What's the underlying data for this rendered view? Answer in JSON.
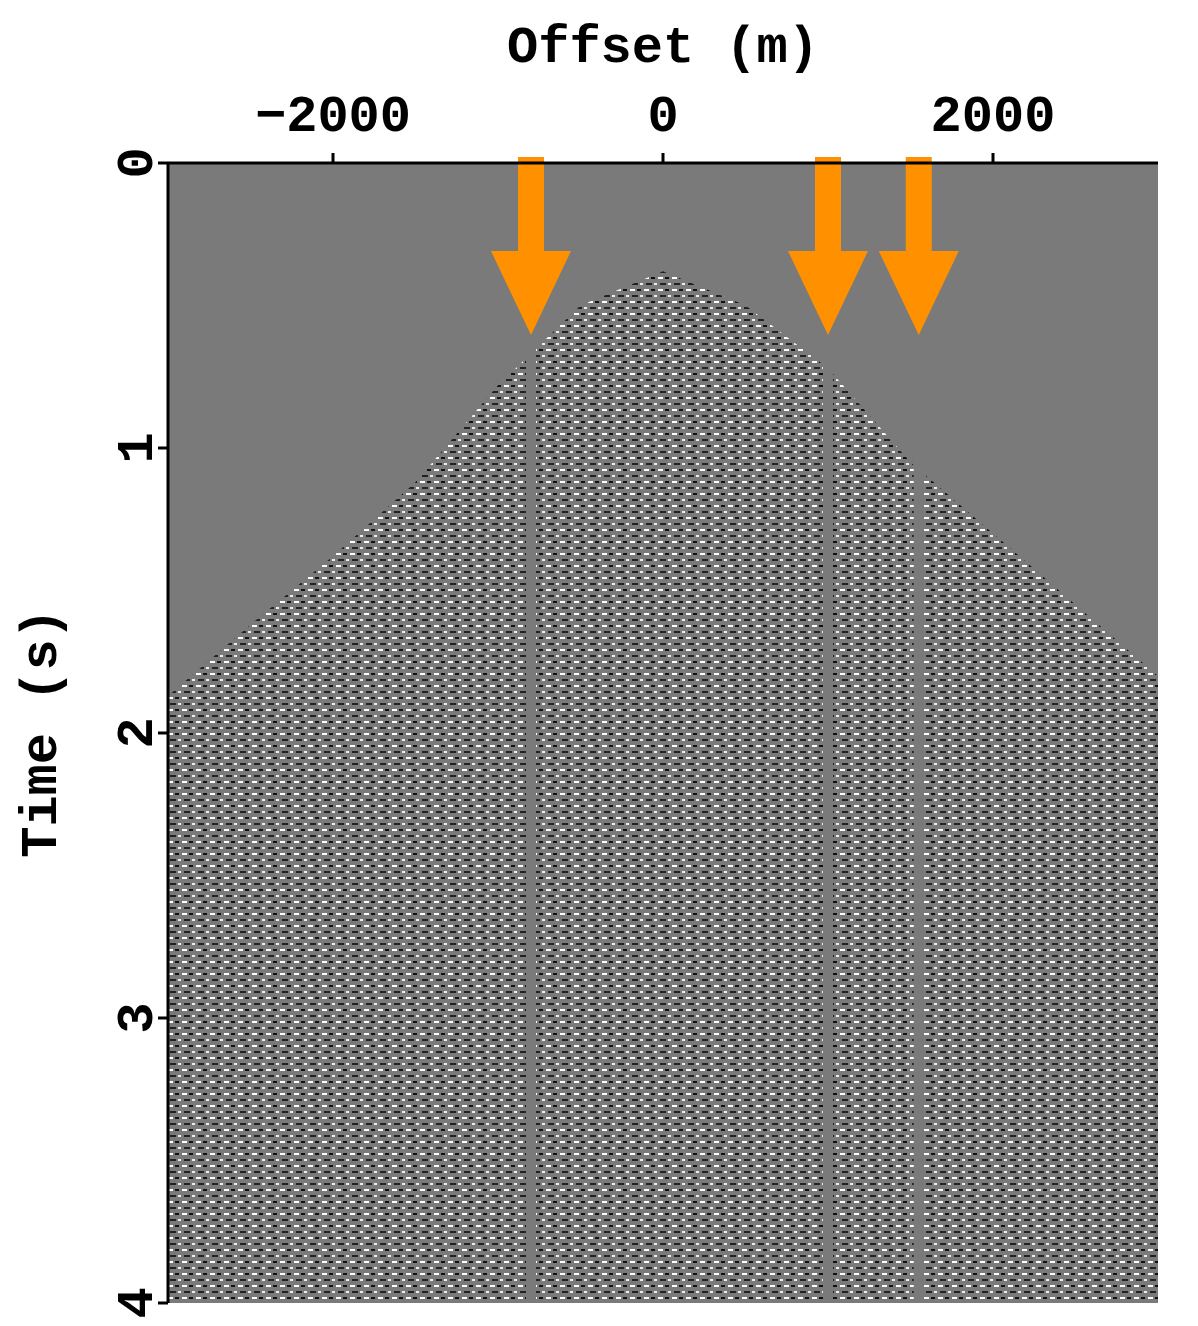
{
  "chart_data": {
    "type": "area",
    "x_label": "Offset (m)",
    "y_label": "Time (s)",
    "xlim": [
      -3000,
      3000
    ],
    "xticks": [
      {
        "value": -2000,
        "label": "−2000"
      },
      0,
      2000
    ],
    "ylim": [
      0,
      4
    ],
    "yticks": [
      0,
      1,
      2,
      3,
      4
    ],
    "grid": false,
    "x": [
      -3000,
      -2900,
      -2500,
      -2000,
      -1500,
      -1000,
      -500,
      0,
      500,
      1000,
      1500,
      2000,
      2500,
      2900,
      3000
    ],
    "values": [
      1.87,
      1.82,
      1.62,
      1.38,
      1.12,
      0.78,
      0.5,
      0.38,
      0.5,
      0.72,
      1.05,
      1.3,
      1.55,
      1.75,
      1.8
    ],
    "missing_traces": [
      -800,
      1000,
      1550
    ]
  }
}
